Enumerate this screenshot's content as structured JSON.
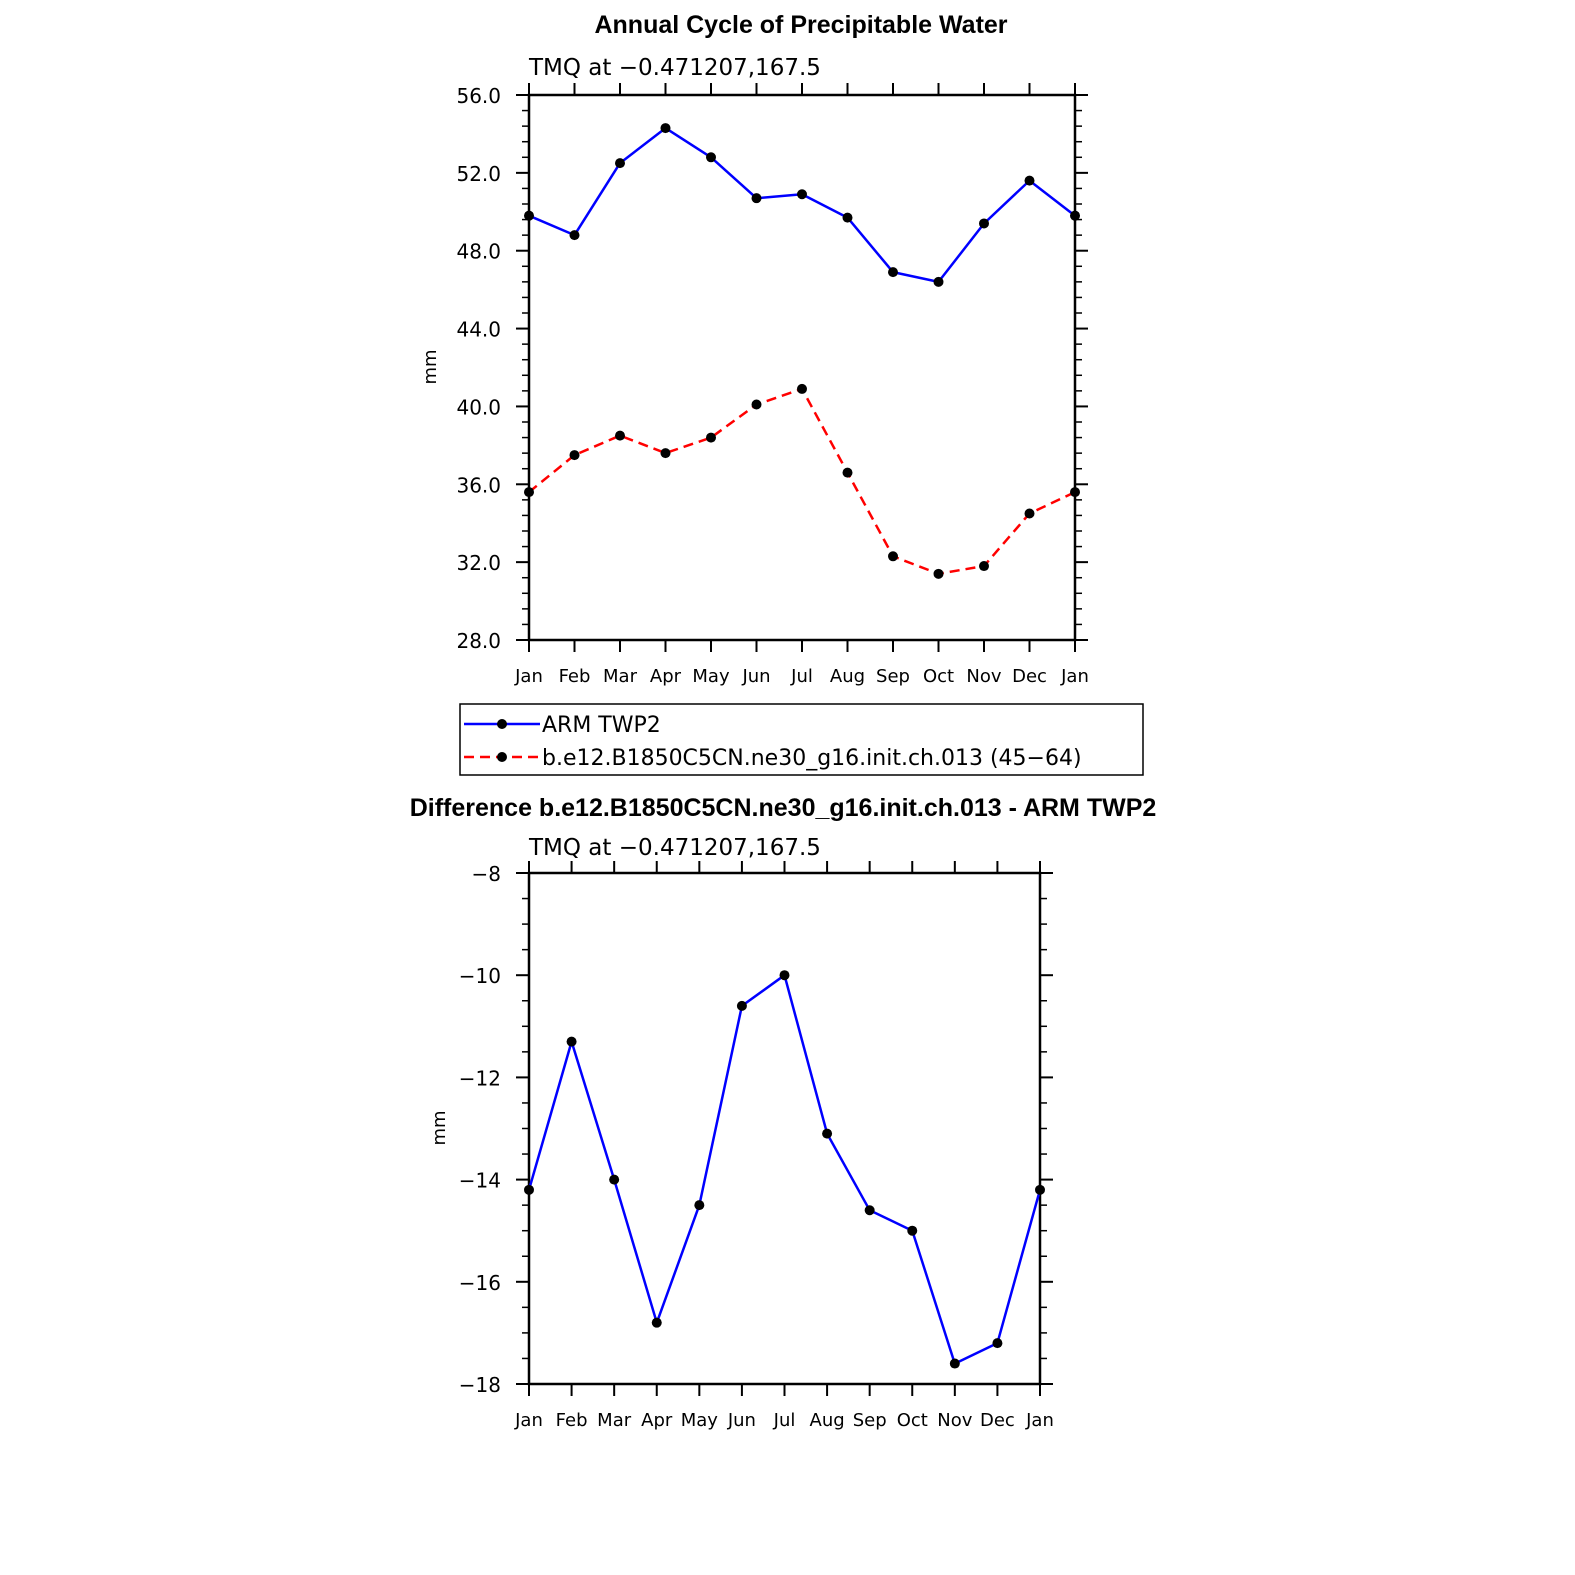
{
  "chart_data": [
    {
      "type": "line",
      "title": "Annual Cycle of Precipitable Water",
      "subtitle": "TMQ at −0.471207,167.5",
      "ylabel": "mm",
      "ylim": [
        28.0,
        56.0
      ],
      "yticks": [
        "28.0",
        "32.0",
        "36.0",
        "40.0",
        "44.0",
        "48.0",
        "52.0",
        "56.0"
      ],
      "categories": [
        "Jan",
        "Feb",
        "Mar",
        "Apr",
        "May",
        "Jun",
        "Jul",
        "Aug",
        "Sep",
        "Oct",
        "Nov",
        "Dec",
        "Jan"
      ],
      "grid": false,
      "legend_position": "bottom",
      "series": [
        {
          "name": "ARM TWP2",
          "color": "#0000ff",
          "dash": "solid",
          "marker": "dot",
          "values": [
            49.8,
            48.8,
            52.5,
            54.3,
            52.8,
            50.7,
            50.9,
            49.7,
            46.9,
            46.4,
            49.4,
            51.6,
            49.8
          ]
        },
        {
          "name": "b.e12.B1850C5CN.ne30_g16.init.ch.013 (45−64)",
          "color": "#ff0000",
          "dash": "dashed",
          "marker": "dot",
          "values": [
            35.6,
            37.5,
            38.5,
            37.6,
            38.4,
            40.1,
            40.9,
            36.6,
            32.3,
            31.4,
            31.8,
            34.5,
            35.6
          ]
        }
      ]
    },
    {
      "type": "line",
      "title": "Difference b.e12.B1850C5CN.ne30_g16.init.ch.013 - ARM TWP2",
      "subtitle": "TMQ at −0.471207,167.5",
      "ylabel": "mm",
      "ylim": [
        -18,
        -8
      ],
      "yticks": [
        "−18",
        "−16",
        "−14",
        "−12",
        "−10",
        "−8"
      ],
      "categories": [
        "Jan",
        "Feb",
        "Mar",
        "Apr",
        "May",
        "Jun",
        "Jul",
        "Aug",
        "Sep",
        "Oct",
        "Nov",
        "Dec",
        "Jan"
      ],
      "grid": false,
      "series": [
        {
          "color": "#0000ff",
          "dash": "solid",
          "marker": "dot",
          "values": [
            -14.2,
            -11.3,
            -14.0,
            -16.8,
            -14.5,
            -10.6,
            -10.0,
            -13.1,
            -14.6,
            -15.0,
            -17.6,
            -17.2,
            -14.2
          ]
        }
      ]
    }
  ]
}
